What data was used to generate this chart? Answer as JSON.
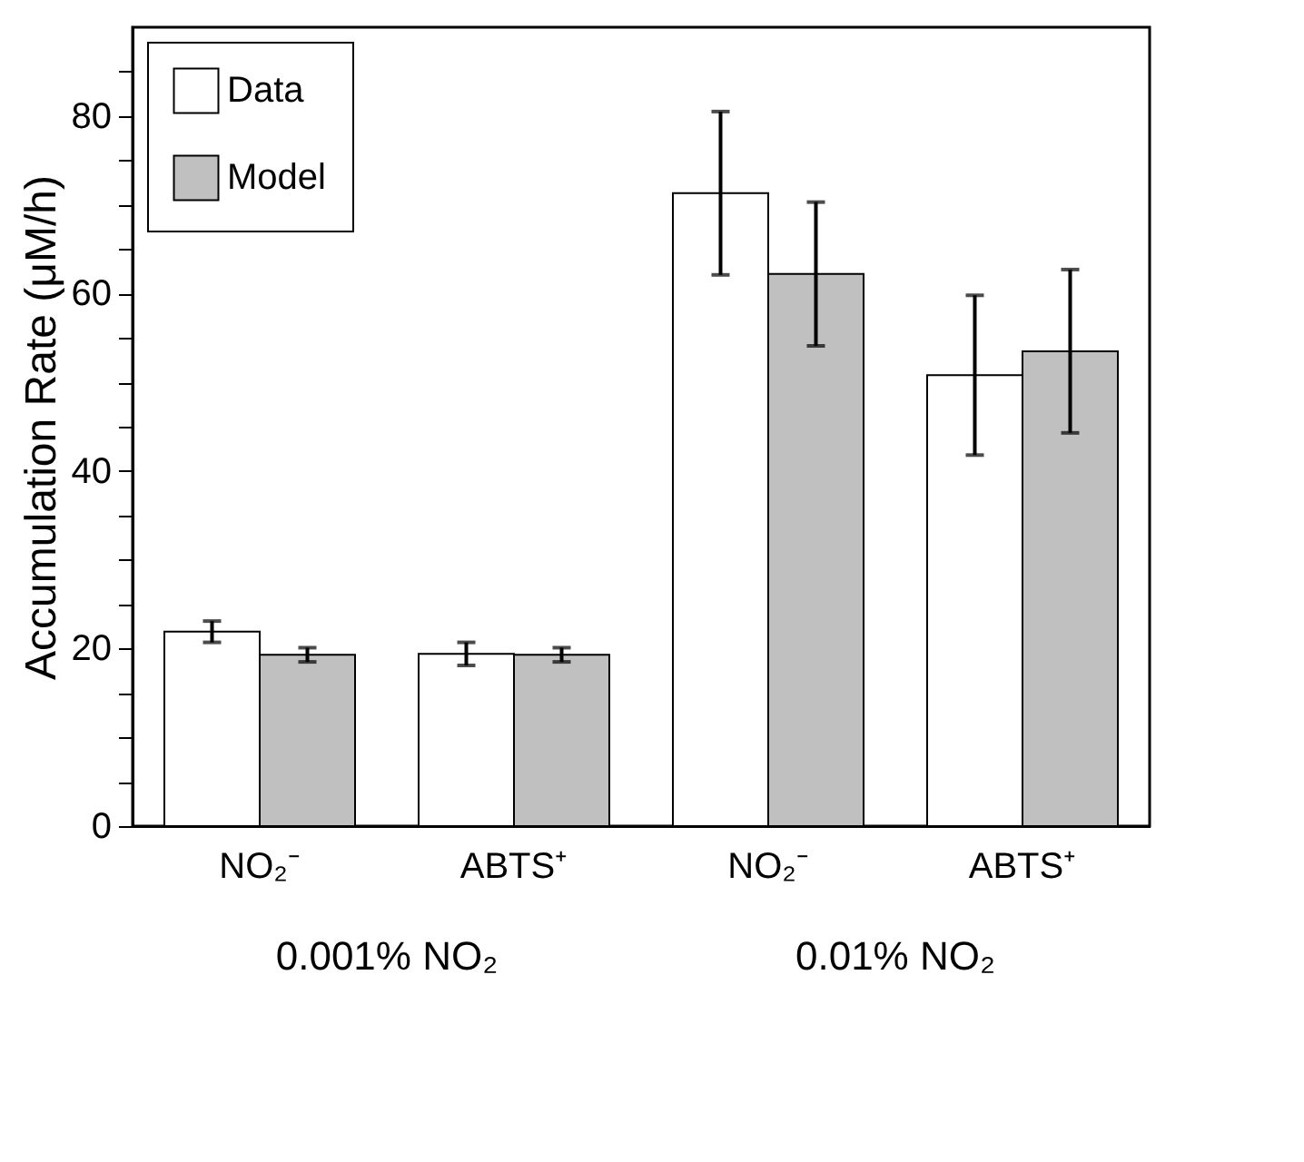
{
  "chart_data": {
    "type": "bar",
    "categories": [
      "NO₂⁻",
      "ABTS⁺",
      "NO₂⁻",
      "ABTS⁺"
    ],
    "series": [
      {
        "name": "Data",
        "color": "#ffffff",
        "values": [
          21.9,
          19.4,
          71.3,
          50.8
        ],
        "errors": [
          1.2,
          1.3,
          9.2,
          9.0
        ]
      },
      {
        "name": "Model",
        "color": "#c0c0c0",
        "values": [
          19.3,
          19.3,
          62.2,
          53.5
        ],
        "errors": [
          0.8,
          0.8,
          8.1,
          9.2
        ]
      }
    ],
    "ylabel": "Accumulation Rate (μM/h)",
    "ylim": [
      0,
      90
    ],
    "yticks": [
      0,
      {
        "value": 5,
        "label": null
      },
      {
        "value": 10,
        "label": null
      },
      {
        "value": 15,
        "label": null
      },
      20,
      {
        "value": 25,
        "label": null
      },
      {
        "value": 30,
        "label": null
      },
      {
        "value": 35,
        "label": null
      },
      40,
      {
        "value": 45,
        "label": null
      },
      {
        "value": 50,
        "label": null
      },
      {
        "value": 55,
        "label": null
      },
      60,
      {
        "value": 65,
        "label": null
      },
      {
        "value": 70,
        "label": null
      },
      {
        "value": 75,
        "label": null
      },
      80,
      {
        "value": 85,
        "label": null
      }
    ],
    "annotations": [
      "0.001% NO₂",
      "0.01% NO₂"
    ],
    "legend": "top left",
    "grid": false
  }
}
